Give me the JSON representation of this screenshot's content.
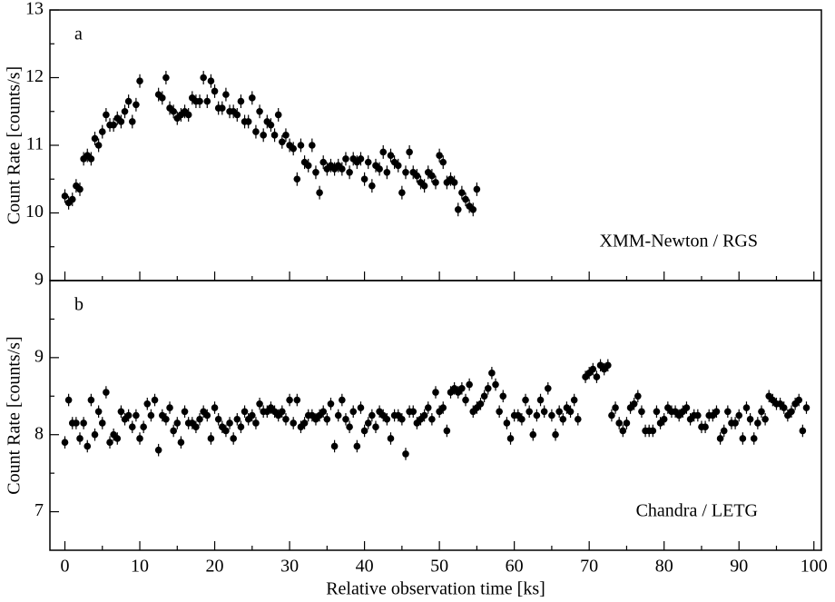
{
  "chart_data": [
    {
      "type": "scatter",
      "panel_label": "a",
      "annotation": "XMM-Newton / RGS",
      "ylabel": "Count Rate [counts/s]",
      "x": [
        0,
        0.5,
        1,
        1.5,
        2,
        2.5,
        3,
        3.5,
        4,
        4.5,
        5,
        5.5,
        6,
        6.5,
        7,
        7.5,
        8,
        8.5,
        9,
        9.5,
        10,
        12.5,
        13,
        13.5,
        14,
        14.5,
        15,
        15.5,
        16,
        16.5,
        17,
        17.5,
        18,
        18.5,
        19,
        19.5,
        20,
        20.5,
        21,
        21.5,
        22,
        22.5,
        23,
        23.5,
        24,
        24.5,
        25,
        25.5,
        26,
        26.5,
        27,
        27.5,
        28,
        28.5,
        29,
        29.5,
        30,
        30.5,
        31,
        31.5,
        32,
        32.5,
        33,
        33.5,
        34,
        34.5,
        35,
        35.5,
        36,
        36.5,
        37,
        37.5,
        38,
        38.5,
        39,
        39.5,
        40,
        40.5,
        41,
        41.5,
        42,
        42.5,
        43,
        43.5,
        44,
        44.5,
        45,
        45.5,
        46,
        46.5,
        47,
        47.5,
        48,
        48.5,
        49,
        49.5,
        50,
        50.5,
        51,
        51.5,
        52,
        52.5,
        53,
        53.5,
        54,
        54.5,
        55
      ],
      "values": [
        10.25,
        10.15,
        10.2,
        10.4,
        10.35,
        10.8,
        10.85,
        10.8,
        11.1,
        11.0,
        11.2,
        11.45,
        11.3,
        11.3,
        11.4,
        11.35,
        11.5,
        11.65,
        11.35,
        11.6,
        11.95,
        11.75,
        11.7,
        12.0,
        11.55,
        11.5,
        11.4,
        11.45,
        11.5,
        11.45,
        11.7,
        11.65,
        11.65,
        12.0,
        11.65,
        11.95,
        11.8,
        11.55,
        11.55,
        11.75,
        11.5,
        11.5,
        11.45,
        11.65,
        11.35,
        11.35,
        11.7,
        11.2,
        11.5,
        11.15,
        11.35,
        11.3,
        11.15,
        11.45,
        11.05,
        11.15,
        11.0,
        10.95,
        10.5,
        11.0,
        10.75,
        10.7,
        11.0,
        10.6,
        10.3,
        10.75,
        10.65,
        10.7,
        10.65,
        10.7,
        10.65,
        10.8,
        10.6,
        10.8,
        10.75,
        10.8,
        10.5,
        10.75,
        10.4,
        10.7,
        10.65,
        10.9,
        10.6,
        10.85,
        10.75,
        10.7,
        10.3,
        10.6,
        10.9,
        10.6,
        10.55,
        10.45,
        10.4,
        10.6,
        10.55,
        10.45,
        10.85,
        10.75,
        10.45,
        10.5,
        10.45,
        10.05,
        10.3,
        10.2,
        10.1,
        10.05,
        10.35
      ],
      "yerr": 0.1,
      "color": "#000000",
      "xlim": [
        -2,
        101
      ],
      "xticks": [
        0,
        10,
        20,
        30,
        40,
        50,
        60,
        70,
        80,
        90,
        100
      ],
      "xminorticks": [
        5,
        15,
        25,
        35,
        45,
        55,
        65,
        75,
        85,
        95
      ],
      "ylim": [
        9,
        13
      ],
      "yticks": [
        9,
        10,
        11,
        12,
        13
      ],
      "yminorticks": [
        9.5,
        10.5,
        11.5,
        12.5
      ]
    },
    {
      "type": "scatter",
      "panel_label": "b",
      "annotation": "Chandra / LETG",
      "ylabel": "Count Rate [counts/s]",
      "xlabel": "Relative observation time [ks]",
      "x": [
        0,
        0.5,
        1,
        1.5,
        2,
        2.5,
        3,
        3.5,
        4,
        4.5,
        5,
        5.5,
        6,
        6.5,
        7,
        7.5,
        8,
        8.5,
        9,
        9.5,
        10,
        10.5,
        11,
        11.5,
        12,
        12.5,
        13,
        13.5,
        14,
        14.5,
        15,
        15.5,
        16,
        16.5,
        17,
        17.5,
        18,
        18.5,
        19,
        19.5,
        20,
        20.5,
        21,
        21.5,
        22,
        22.5,
        23,
        23.5,
        24,
        24.5,
        25,
        25.5,
        26,
        26.5,
        27,
        27.5,
        28,
        28.5,
        29,
        29.5,
        30,
        30.5,
        31,
        31.5,
        32,
        32.5,
        33,
        33.5,
        34,
        34.5,
        35,
        35.5,
        36,
        36.5,
        37,
        37.5,
        38,
        38.5,
        39,
        39.5,
        40,
        40.5,
        41,
        41.5,
        42,
        42.5,
        43,
        43.5,
        44,
        44.5,
        45,
        45.5,
        46,
        46.5,
        47,
        47.5,
        48,
        48.5,
        49,
        49.5,
        50,
        50.5,
        51,
        51.5,
        52,
        52.5,
        53,
        53.5,
        54,
        54.5,
        55,
        55.5,
        56,
        56.5,
        57,
        57.5,
        58,
        58.5,
        59,
        59.5,
        60,
        60.5,
        61,
        61.5,
        62,
        62.5,
        63,
        63.5,
        64,
        64.5,
        65,
        65.5,
        66,
        66.5,
        67,
        67.5,
        68,
        68.5,
        69.5,
        70,
        70.5,
        71,
        71.5,
        72,
        72.5,
        73,
        73.5,
        74,
        74.5,
        75,
        75.5,
        76,
        76.5,
        77,
        77.5,
        78,
        78.5,
        79,
        79.5,
        80,
        80.5,
        81,
        81.5,
        82,
        82.5,
        83,
        83.5,
        84,
        84.5,
        85,
        85.5,
        86,
        86.5,
        87,
        87.5,
        88,
        88.5,
        89,
        89.5,
        90,
        90.5,
        91,
        91.5,
        92,
        92.5,
        93,
        93.5,
        94,
        94.5,
        95,
        95.5,
        96,
        96.5,
        97,
        97.5,
        98,
        98.5,
        99
      ],
      "values": [
        7.9,
        8.45,
        8.15,
        8.15,
        7.95,
        8.15,
        7.85,
        8.45,
        8.0,
        8.3,
        8.15,
        8.55,
        7.9,
        8.0,
        7.95,
        8.3,
        8.2,
        8.25,
        8.1,
        8.25,
        7.95,
        8.1,
        8.4,
        8.25,
        8.45,
        7.8,
        8.25,
        8.2,
        8.35,
        8.05,
        8.15,
        7.9,
        8.3,
        8.15,
        8.15,
        8.1,
        8.2,
        8.3,
        8.25,
        7.95,
        8.35,
        8.2,
        8.1,
        8.05,
        8.15,
        7.95,
        8.2,
        8.1,
        8.3,
        8.2,
        8.25,
        8.15,
        8.4,
        8.3,
        8.3,
        8.35,
        8.3,
        8.25,
        8.3,
        8.2,
        8.45,
        8.15,
        8.45,
        8.1,
        8.15,
        8.25,
        8.25,
        8.2,
        8.25,
        8.3,
        8.2,
        8.4,
        7.85,
        8.25,
        8.45,
        8.2,
        8.1,
        8.3,
        7.85,
        8.35,
        8.05,
        8.15,
        8.25,
        8.1,
        8.3,
        8.25,
        8.2,
        7.95,
        8.25,
        8.25,
        8.2,
        7.75,
        8.3,
        8.3,
        8.15,
        8.2,
        8.25,
        8.35,
        8.2,
        8.55,
        8.3,
        8.35,
        8.05,
        8.55,
        8.6,
        8.55,
        8.6,
        8.45,
        8.65,
        8.3,
        8.35,
        8.4,
        8.5,
        8.6,
        8.8,
        8.65,
        8.3,
        8.5,
        8.15,
        7.95,
        8.25,
        8.25,
        8.2,
        8.45,
        8.3,
        8.0,
        8.25,
        8.45,
        8.3,
        8.6,
        8.25,
        8.0,
        8.3,
        8.2,
        8.35,
        8.3,
        8.45,
        8.2,
        8.75,
        8.8,
        8.85,
        8.75,
        8.9,
        8.85,
        8.9,
        8.25,
        8.35,
        8.15,
        8.05,
        8.15,
        8.35,
        8.4,
        8.5,
        8.3,
        8.05,
        8.05,
        8.05,
        8.3,
        8.15,
        8.2,
        8.35,
        8.3,
        8.3,
        8.25,
        8.3,
        8.35,
        8.2,
        8.25,
        8.25,
        8.1,
        8.1,
        8.25,
        8.25,
        8.3,
        7.95,
        8.05,
        8.3,
        8.15,
        8.15,
        8.25,
        7.95,
        8.35,
        8.2,
        7.95,
        8.15,
        8.3,
        8.2,
        8.5,
        8.45,
        8.4,
        8.4,
        8.35,
        8.25,
        8.3,
        8.4,
        8.45,
        8.05,
        8.35
      ],
      "yerr": 0.08,
      "color": "#000000",
      "xlim": [
        -2,
        101
      ],
      "xticks": [
        0,
        10,
        20,
        30,
        40,
        50,
        60,
        70,
        80,
        90,
        100
      ],
      "xminorticks": [
        5,
        15,
        25,
        35,
        45,
        55,
        65,
        75,
        85,
        95
      ],
      "ylim": [
        6.5,
        10
      ],
      "yticks": [
        7,
        8,
        9
      ],
      "yminorticks": [
        7.5,
        8.5,
        9.5
      ]
    }
  ]
}
